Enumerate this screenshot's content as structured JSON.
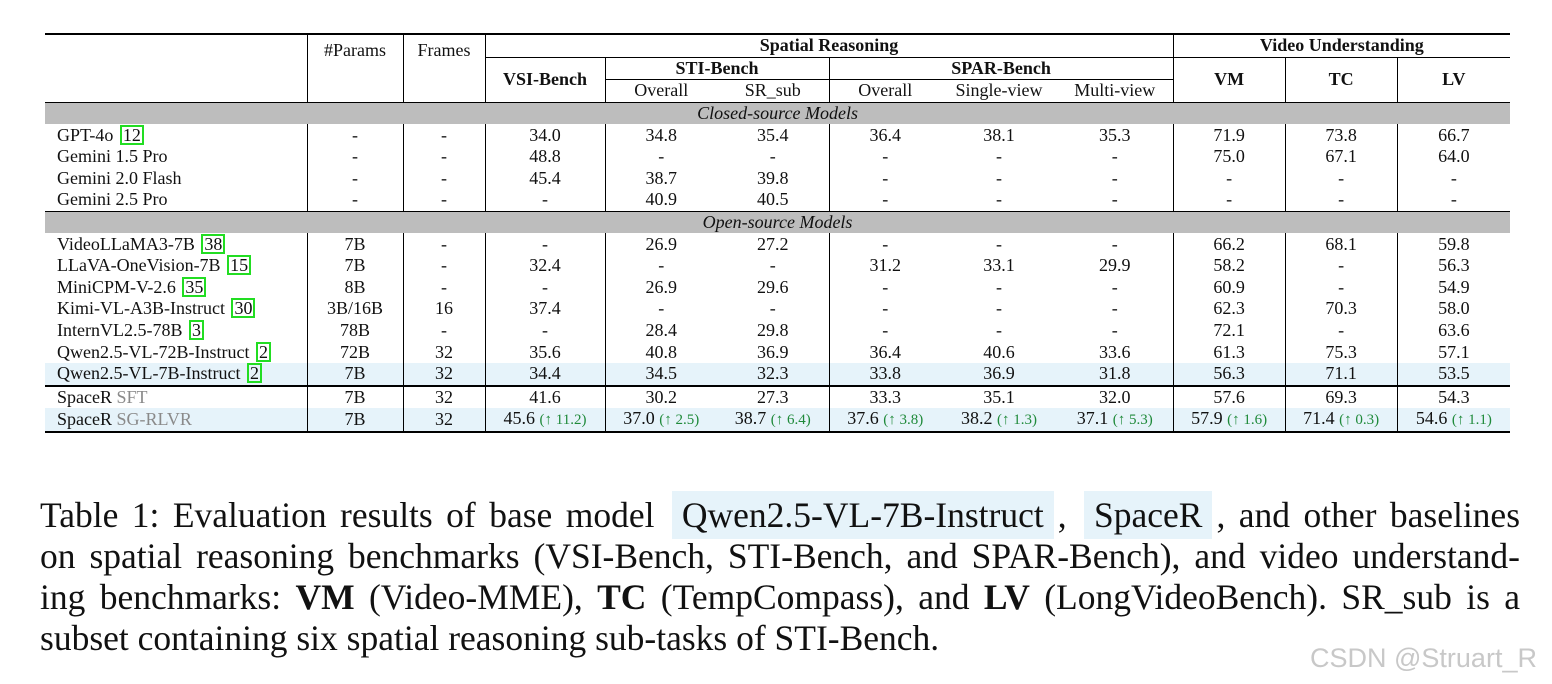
{
  "table": {
    "headers": {
      "params": "#Params",
      "frames": "Frames",
      "spatial_reasoning": "Spatial Reasoning",
      "video_understanding": "Video Understanding",
      "vsi_bench": "VSI-Bench",
      "sti_bench": "STI-Bench",
      "spar_bench": "SPAR-Bench",
      "sti_overall": "Overall",
      "sti_sr_sub": "SR_sub",
      "spar_overall": "Overall",
      "spar_single": "Single-view",
      "spar_multi": "Multi-view",
      "vm": "VM",
      "tc": "TC",
      "lv": "LV"
    },
    "sections": {
      "closed": "Closed-source Models",
      "open": "Open-source Models"
    },
    "closed_rows": [
      {
        "name": "GPT-4o",
        "ref": "12",
        "cells": [
          "-",
          "-",
          "34.0",
          "34.8",
          "35.4",
          "36.4",
          "38.1",
          "35.3",
          "71.9",
          "73.8",
          "66.7"
        ]
      },
      {
        "name": "Gemini 1.5 Pro",
        "ref": "",
        "cells": [
          "-",
          "-",
          "48.8",
          "-",
          "-",
          "-",
          "-",
          "-",
          "75.0",
          "67.1",
          "64.0"
        ]
      },
      {
        "name": "Gemini 2.0 Flash",
        "ref": "",
        "cells": [
          "-",
          "-",
          "45.4",
          "38.7",
          "39.8",
          "-",
          "-",
          "-",
          "-",
          "-",
          "-"
        ]
      },
      {
        "name": "Gemini 2.5 Pro",
        "ref": "",
        "cells": [
          "-",
          "-",
          "-",
          "40.9",
          "40.5",
          "-",
          "-",
          "-",
          "-",
          "-",
          "-"
        ]
      }
    ],
    "open_rows": [
      {
        "name": "VideoLLaMA3-7B",
        "ref": "38",
        "cells": [
          "7B",
          "-",
          "-",
          "26.9",
          "27.2",
          "-",
          "-",
          "-",
          "66.2",
          "68.1",
          "59.8"
        ]
      },
      {
        "name": "LLaVA-OneVision-7B",
        "ref": "15",
        "cells": [
          "7B",
          "-",
          "32.4",
          "-",
          "-",
          "31.2",
          "33.1",
          "29.9",
          "58.2",
          "-",
          "56.3"
        ]
      },
      {
        "name": "MiniCPM-V-2.6",
        "ref": "35",
        "cells": [
          "8B",
          "-",
          "-",
          "26.9",
          "29.6",
          "-",
          "-",
          "-",
          "60.9",
          "-",
          "54.9"
        ]
      },
      {
        "name": "Kimi-VL-A3B-Instruct",
        "ref": "30",
        "cells": [
          "3B/16B",
          "16",
          "37.4",
          "-",
          "-",
          "-",
          "-",
          "-",
          "62.3",
          "70.3",
          "58.0"
        ]
      },
      {
        "name": "InternVL2.5-78B",
        "ref": "3",
        "cells": [
          "78B",
          "-",
          "-",
          "28.4",
          "29.8",
          "-",
          "-",
          "-",
          "72.1",
          "-",
          "63.6"
        ]
      },
      {
        "name": "Qwen2.5-VL-72B-Instruct",
        "ref": "2",
        "cells": [
          "72B",
          "32",
          "35.6",
          "40.8",
          "36.9",
          "36.4",
          "40.6",
          "33.6",
          "61.3",
          "75.3",
          "57.1"
        ]
      },
      {
        "name": "Qwen2.5-VL-7B-Instruct",
        "ref": "2",
        "cells": [
          "7B",
          "32",
          "34.4",
          "34.5",
          "32.3",
          "33.8",
          "36.9",
          "31.8",
          "56.3",
          "71.1",
          "53.5"
        ]
      }
    ],
    "spacer_rows": [
      {
        "name": "SpaceR",
        "tag": "SFT",
        "cells": [
          "7B",
          "32",
          "41.6",
          "30.2",
          "27.3",
          "33.3",
          "35.1",
          "32.0",
          "57.6",
          "69.3",
          "54.3"
        ],
        "incs": [
          "",
          "",
          "",
          "",
          "",
          "",
          "",
          "",
          "",
          "",
          ""
        ]
      },
      {
        "name": "SpaceR",
        "tag": "SG-RLVR",
        "cells": [
          "7B",
          "32",
          "45.6",
          "37.0",
          "38.7",
          "37.6",
          "38.2",
          "37.1",
          "57.9",
          "71.4",
          "54.6"
        ],
        "incs": [
          "",
          "",
          "(↑ 11.2)",
          "(↑ 2.5)",
          "(↑ 6.4)",
          "(↑ 3.8)",
          "(↑ 1.3)",
          "(↑ 5.3)",
          "(↑ 1.6)",
          "(↑ 0.3)",
          "(↑ 1.1)"
        ]
      }
    ]
  },
  "caption": {
    "l1_a": "Table 1: Evaluation results of base model ",
    "l1_hl1": "Qwen2.5-VL-7B-Instruct",
    "l1_b": ", ",
    "l1_hl2": "SpaceR",
    "l1_c": ", and other baselines",
    "l2": "on spatial reasoning benchmarks (VSI-Bench, STI-Bench, and SPAR-Bench), and video understand-",
    "l3_a": "ing benchmarks: ",
    "l3_vm": "VM",
    "l3_b": " (Video-MME), ",
    "l3_tc": "TC",
    "l3_c": " (TempCompass), and ",
    "l3_lv": "LV",
    "l3_d": " (LongVideoBench). SR_sub is a",
    "l4": "subset containing six spatial reasoning sub-tasks of STI-Bench."
  },
  "watermark": "CSDN @Struart_R",
  "colors": {
    "section_bg": "#bdbdbd",
    "highlight_bg": "#e6f3fa",
    "ref_border": "#22dd22",
    "increase": "#1f8a3a",
    "tag_gray": "#8a8a8a"
  }
}
